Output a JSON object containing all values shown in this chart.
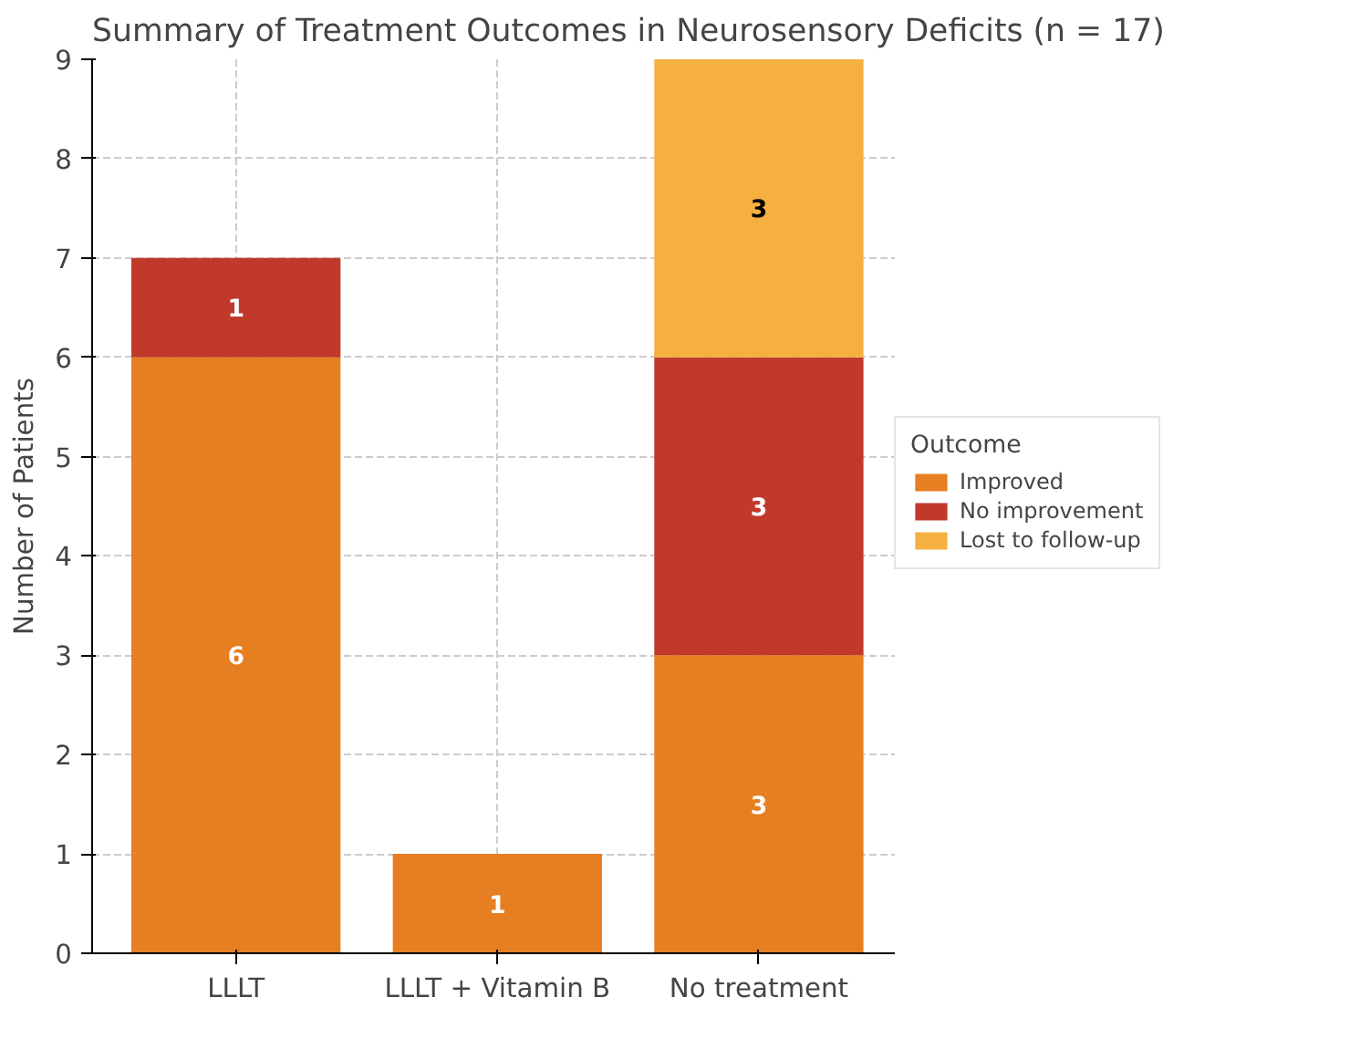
{
  "chart_data": {
    "type": "bar",
    "title": "Summary of Treatment Outcomes in Neurosensory Deficits (n = 17)",
    "ylabel": "Number of Patients",
    "legend_title": "Outcome",
    "categories": [
      "LLLT",
      "LLLT + Vitamin B",
      "No treatment"
    ],
    "series": [
      {
        "name": "Improved",
        "color": "#e67e22",
        "values": [
          6,
          1,
          3
        ]
      },
      {
        "name": "No improvement",
        "color": "#c0392b",
        "values": [
          1,
          null,
          3
        ]
      },
      {
        "name": "Lost to follow-up",
        "color": "#f5b041",
        "values": [
          null,
          null,
          3
        ]
      }
    ],
    "stacked": true,
    "ylim": [
      0,
      9
    ],
    "yticks": [
      0,
      1,
      2,
      3,
      4,
      5,
      6,
      7,
      8,
      9
    ],
    "grid": true,
    "legend": "right",
    "data_labels": true
  }
}
